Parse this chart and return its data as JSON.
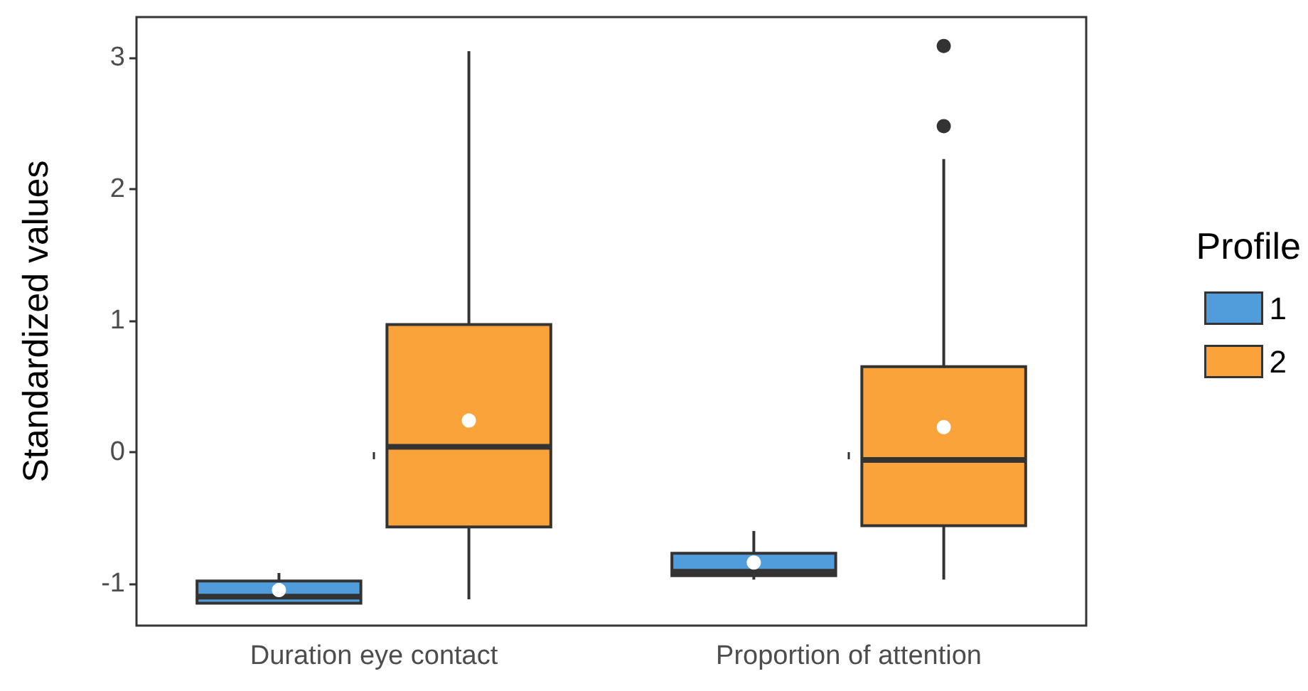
{
  "chart_data": {
    "type": "box",
    "ylabel": "Standardized values",
    "legend_title": "Profile",
    "categories": [
      "Duration eye contact",
      "Proportion of attention"
    ],
    "ylim": [
      -1.32,
      3.31
    ],
    "yticks": [
      -1,
      0,
      1,
      2,
      3
    ],
    "grid": false,
    "legend": "right",
    "series": [
      {
        "name": "1",
        "color": "#519ddb",
        "boxes": [
          {
            "low": -1.15,
            "q1": -1.15,
            "median": -1.1,
            "q3": -0.98,
            "high": -0.92,
            "mean": -1.05
          },
          {
            "low": -0.97,
            "q1": -0.94,
            "median": -0.91,
            "q3": -0.77,
            "high": -0.6,
            "mean": -0.84
          }
        ]
      },
      {
        "name": "2",
        "color": "#f9a33a",
        "boxes": [
          {
            "low": -1.12,
            "q1": -0.57,
            "median": 0.04,
            "q3": 0.97,
            "high": 3.05,
            "mean": 0.24
          },
          {
            "low": -0.97,
            "q1": -0.56,
            "median": -0.06,
            "q3": 0.65,
            "high": 2.23,
            "mean": 0.19,
            "outliers": [
              3.09,
              2.48
            ]
          }
        ]
      }
    ]
  }
}
